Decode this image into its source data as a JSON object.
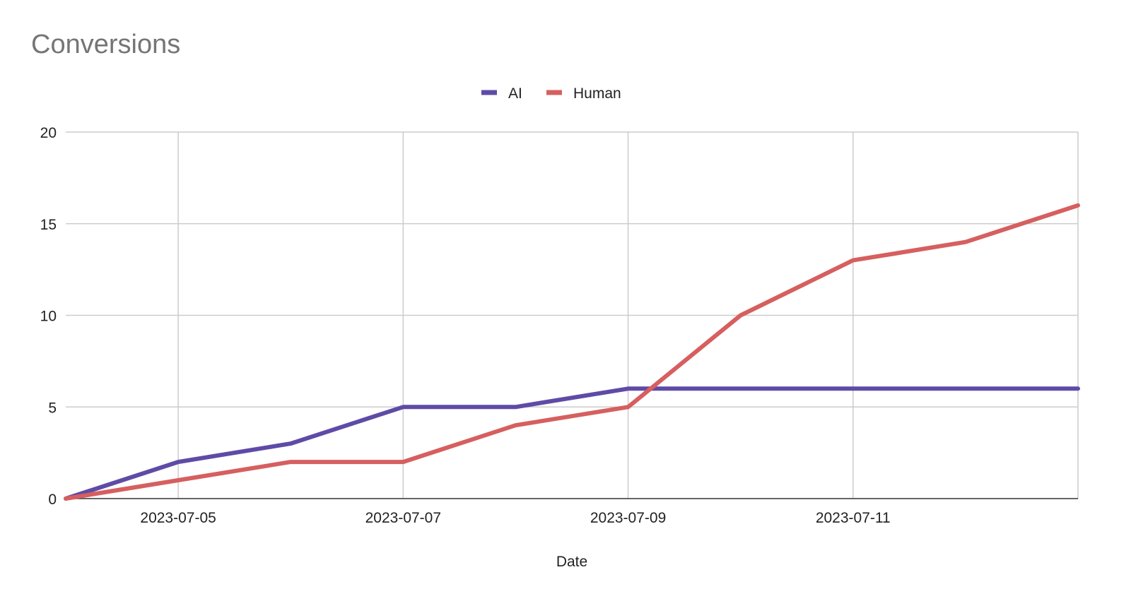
{
  "chart_data": {
    "type": "line",
    "title": "Conversions",
    "xlabel": "Date",
    "ylabel": "",
    "x": [
      "2023-07-04",
      "2023-07-05",
      "2023-07-06",
      "2023-07-07",
      "2023-07-08",
      "2023-07-09",
      "2023-07-10",
      "2023-07-11",
      "2023-07-12",
      "2023-07-13"
    ],
    "x_tick_labels": [
      "2023-07-05",
      "2023-07-07",
      "2023-07-09",
      "2023-07-11"
    ],
    "ylim": [
      0,
      20
    ],
    "y_ticks": [
      0,
      5,
      10,
      15,
      20
    ],
    "grid": true,
    "legend_position": "top-center",
    "series": [
      {
        "name": "AI",
        "color": "#5f4ba6",
        "values": [
          0,
          2,
          3,
          5,
          5,
          6,
          6,
          6,
          6,
          6
        ]
      },
      {
        "name": "Human",
        "color": "#d65f5f",
        "values": [
          0,
          1,
          2,
          2,
          4,
          5,
          10,
          13,
          14,
          16
        ]
      }
    ]
  }
}
